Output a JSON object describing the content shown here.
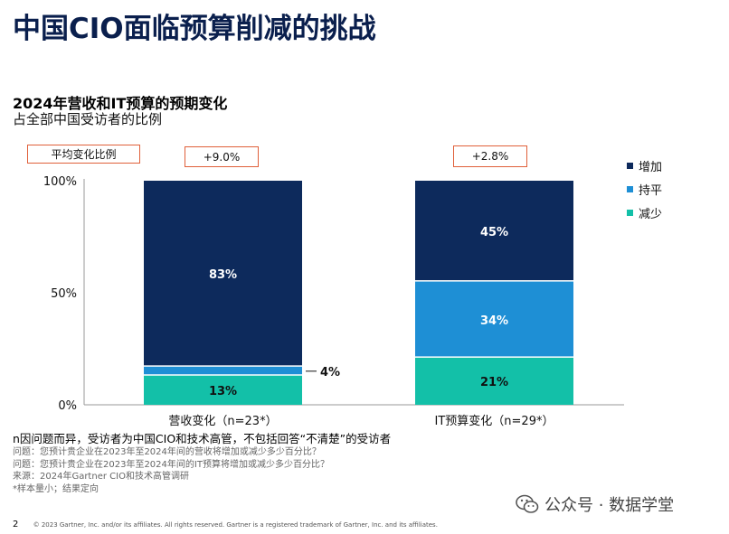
{
  "title": "中国CIO面临预算削减的挑战",
  "subtitle": "2024年营收和IT预算的预期变化",
  "subtitle2": "占全部中国受访者的比例",
  "avg_label": "平均变化比例",
  "avg_values": [
    "+9.0%",
    "+2.8%"
  ],
  "notes": {
    "main": "n因问题而异，受访者为中国CIO和技术高管，不包括回答“不清楚”的受访者",
    "lines": [
      "问题：您预计贵企业在2023年至2024年间的营收将增加或减少多少百分比？",
      "问题：您预计贵企业在2023年至2024年间的IT预算将增加或减少多少百分比？",
      "来源：2024年Gartner CIO和技术高管调研",
      "*样本量小；结果定向"
    ]
  },
  "footer": {
    "page_number": "2",
    "copyright": "© 2023 Gartner, Inc. and/or its affiliates. All rights reserved. Gartner is a registered trademark of Gartner, Inc. and its affiliates."
  },
  "watermark": "公众号 · 数据学堂",
  "colors": {
    "increase": "#0d2a5c",
    "flat": "#1e8fd5",
    "decrease": "#13c0a8"
  },
  "chart_data": {
    "type": "bar",
    "stacked": true,
    "categories": [
      "营收变化（n=23*）",
      "IT预算变化（n=29*）"
    ],
    "series": [
      {
        "name": "减少",
        "values": [
          13,
          21
        ],
        "labels": [
          "13%",
          "21%"
        ]
      },
      {
        "name": "持平",
        "values": [
          4,
          34
        ],
        "labels": [
          "4%",
          "34%"
        ]
      },
      {
        "name": "增加",
        "values": [
          83,
          45
        ],
        "labels": [
          "83%",
          "45%"
        ]
      }
    ],
    "ylim": [
      0,
      100
    ],
    "yticks": [
      "0%",
      "50%",
      "100%"
    ],
    "legend": [
      "增加",
      "持平",
      "减少"
    ],
    "legend_position": "right"
  }
}
